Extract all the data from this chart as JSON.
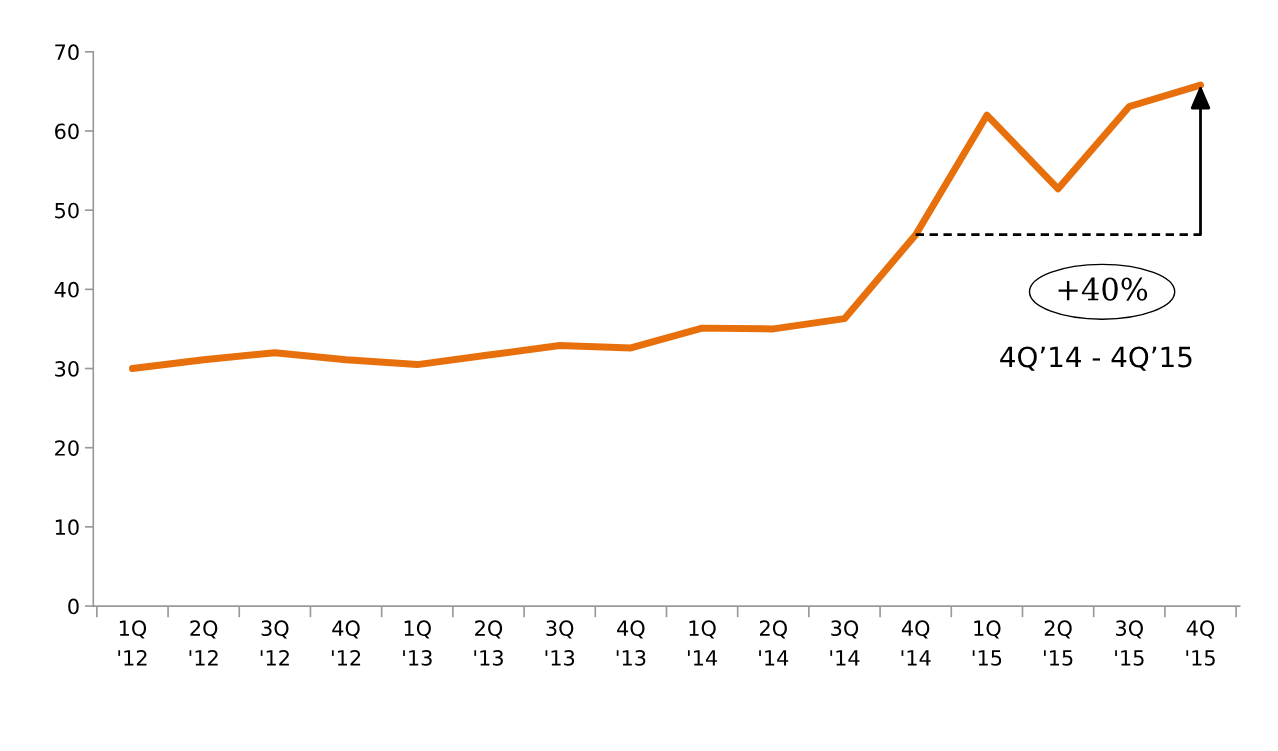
{
  "chart_data": {
    "type": "line",
    "categories": [
      "1Q\n'12",
      "2Q\n'12",
      "3Q\n'12",
      "4Q\n'12",
      "1Q\n'13",
      "2Q\n'13",
      "3Q\n'13",
      "4Q\n'13",
      "1Q\n'14",
      "2Q\n'14",
      "3Q\n'14",
      "4Q\n'14",
      "1Q\n'15",
      "2Q\n'15",
      "3Q\n'15",
      "4Q\n'15"
    ],
    "series": [
      {
        "color": "#e8700c",
        "line_style": "solid",
        "values": [
          30.0,
          31.1,
          32.0,
          31.1,
          30.5,
          31.7,
          32.9,
          32.6,
          35.1,
          35.0,
          36.3,
          46.9,
          62.0,
          52.7,
          63.1,
          65.8
        ]
      },
      {
        "color": "#000000",
        "line_style": "dashed",
        "values": [
          null,
          null,
          null,
          null,
          null,
          null,
          null,
          null,
          null,
          null,
          null,
          46.9,
          46.9,
          46.9,
          46.9,
          46.9
        ]
      }
    ],
    "ylim": [
      0,
      70
    ],
    "yticks": [
      0,
      10,
      20,
      30,
      40,
      50,
      60,
      70
    ],
    "grid": false,
    "legend": false,
    "marker": "none",
    "annotations": [
      "+40%",
      "4Q’14 - 4Q’15"
    ]
  }
}
